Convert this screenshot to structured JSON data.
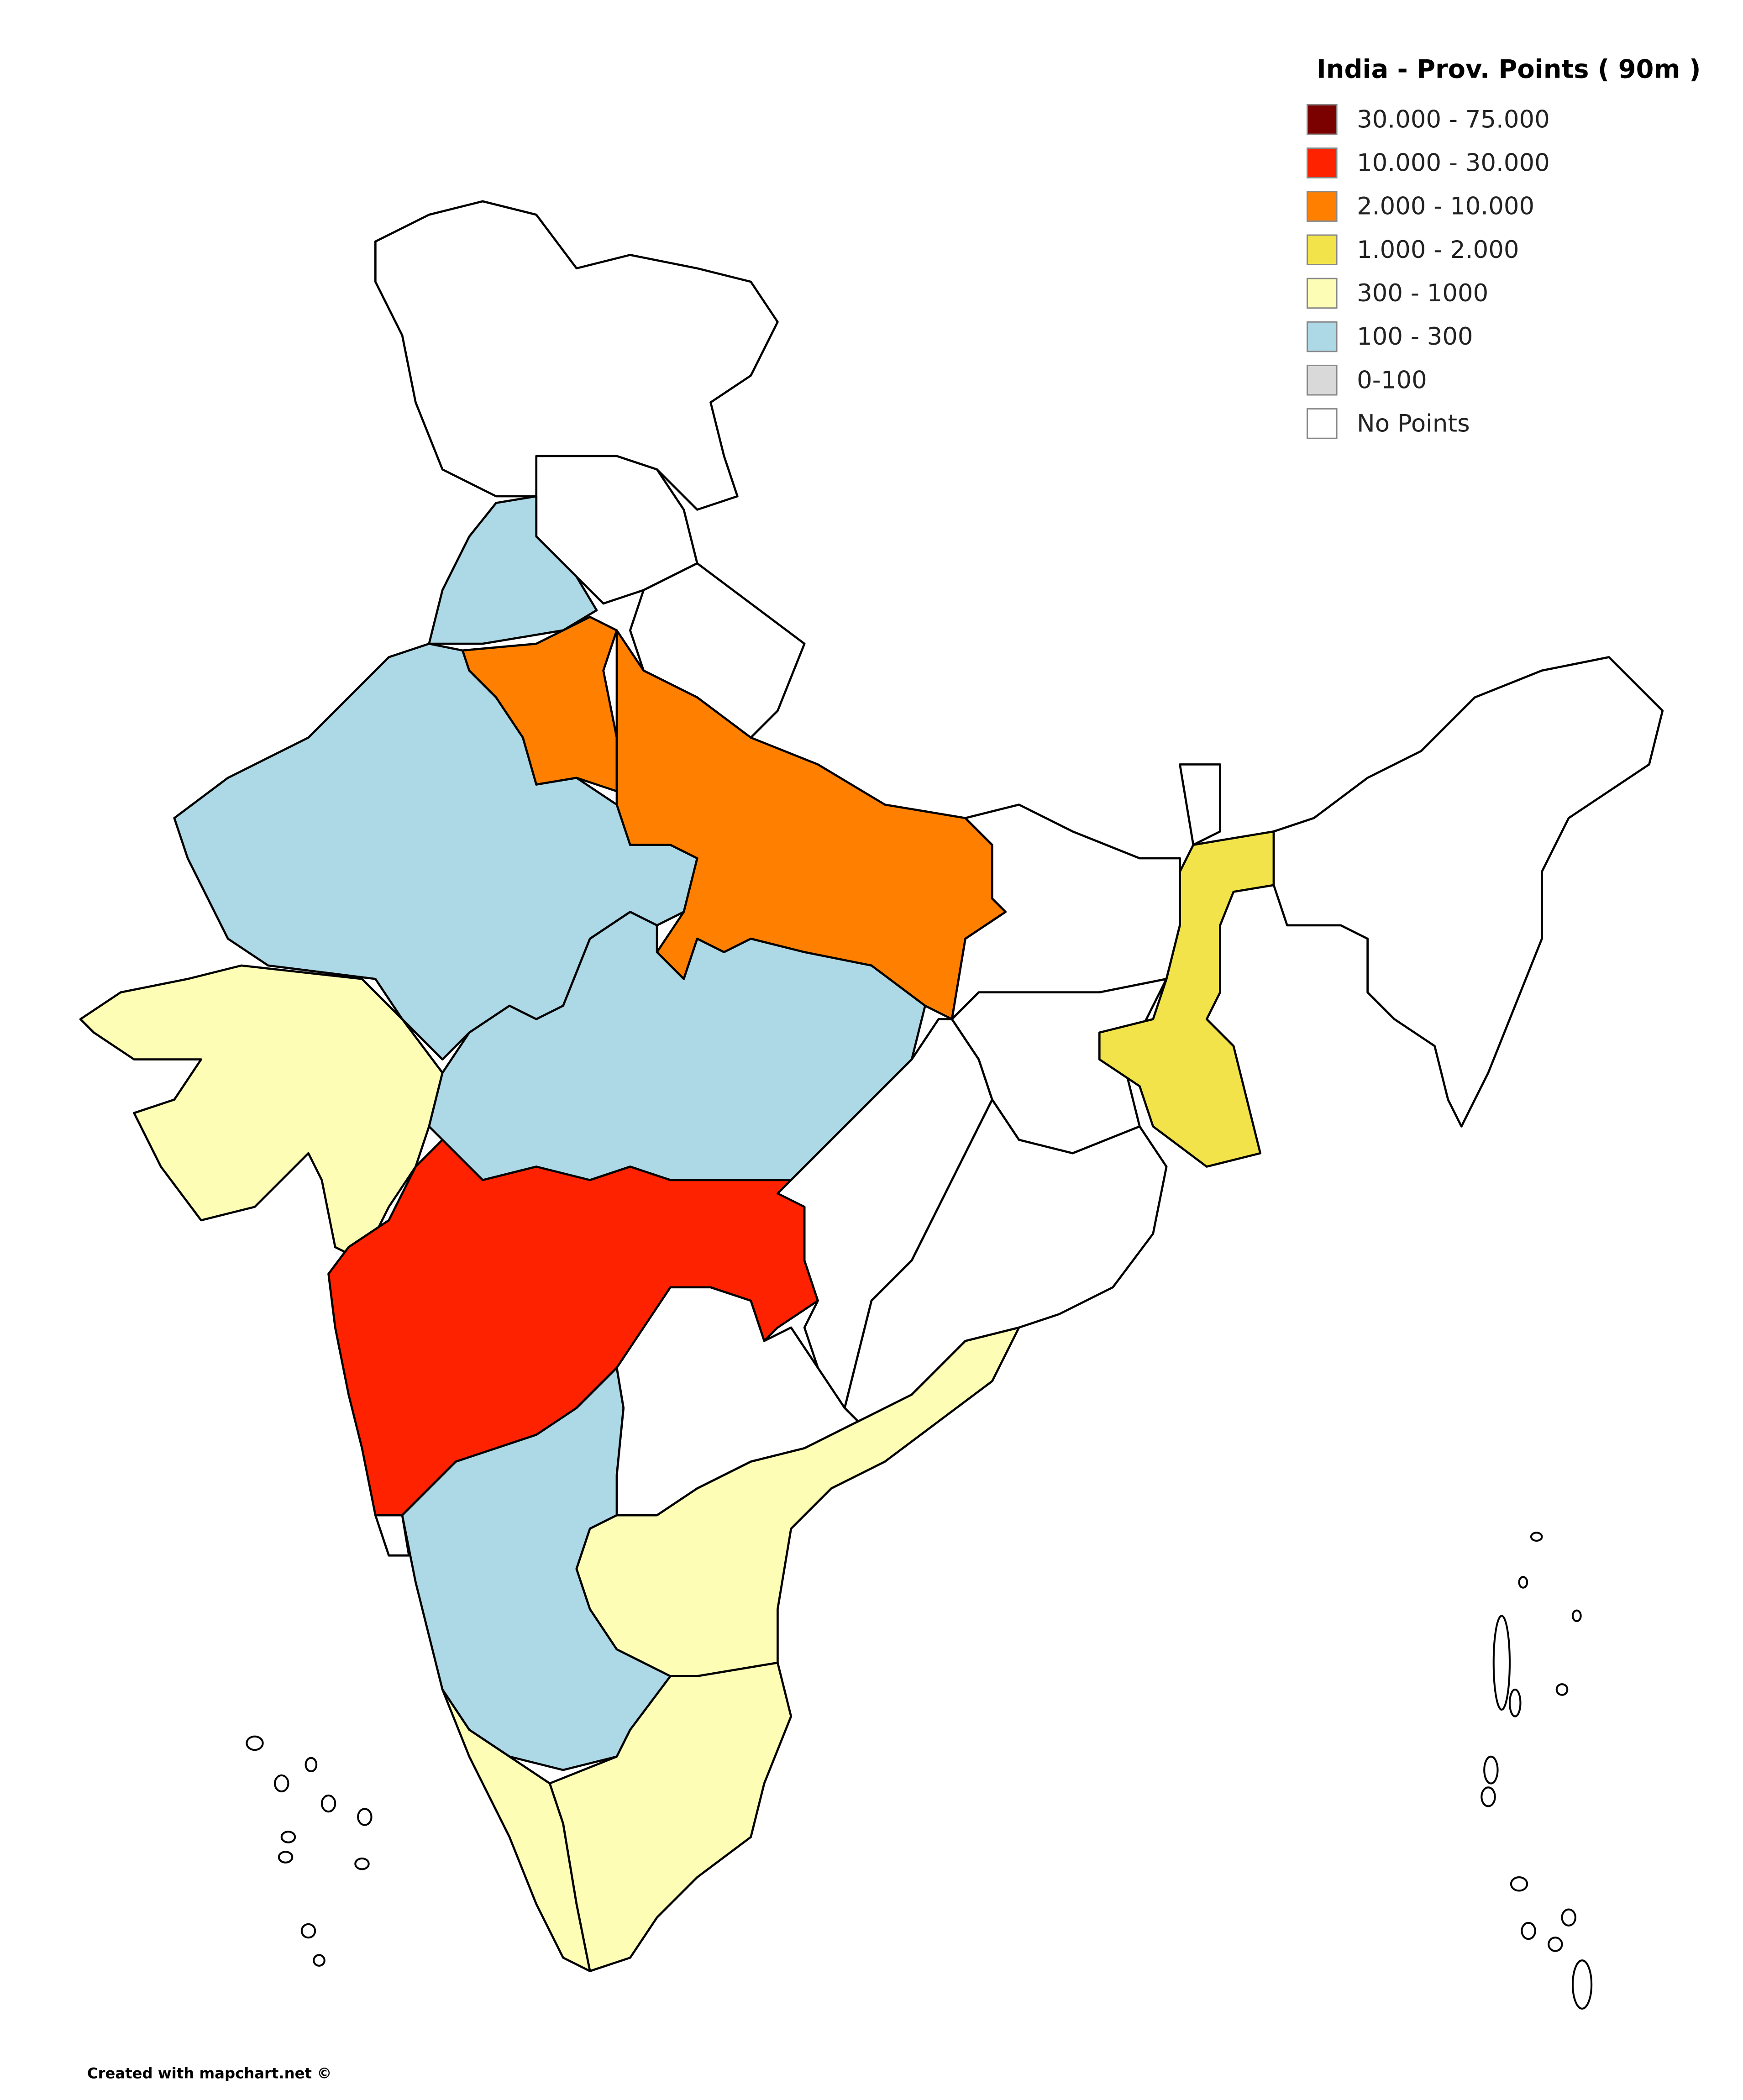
{
  "legend": {
    "title": "India - Prov. Points ( 90m )",
    "items": [
      {
        "label": "30.000 - 75.000",
        "color": "#7b0000"
      },
      {
        "label": "10.000 - 30.000",
        "color": "#ff2200"
      },
      {
        "label": "2.000 - 10.000",
        "color": "#ff8000"
      },
      {
        "label": "1.000 - 2.000",
        "color": "#f2e34a"
      },
      {
        "label": "300 - 1000",
        "color": "#fdfdb5"
      },
      {
        "label": "100 - 300",
        "color": "#add8e6"
      },
      {
        "label": "0-100",
        "color": "#d9d9d9"
      },
      {
        "label": "No Points",
        "color": "#ffffff"
      }
    ]
  },
  "footer": {
    "credit": "Created with mapchart.net ©"
  }
}
